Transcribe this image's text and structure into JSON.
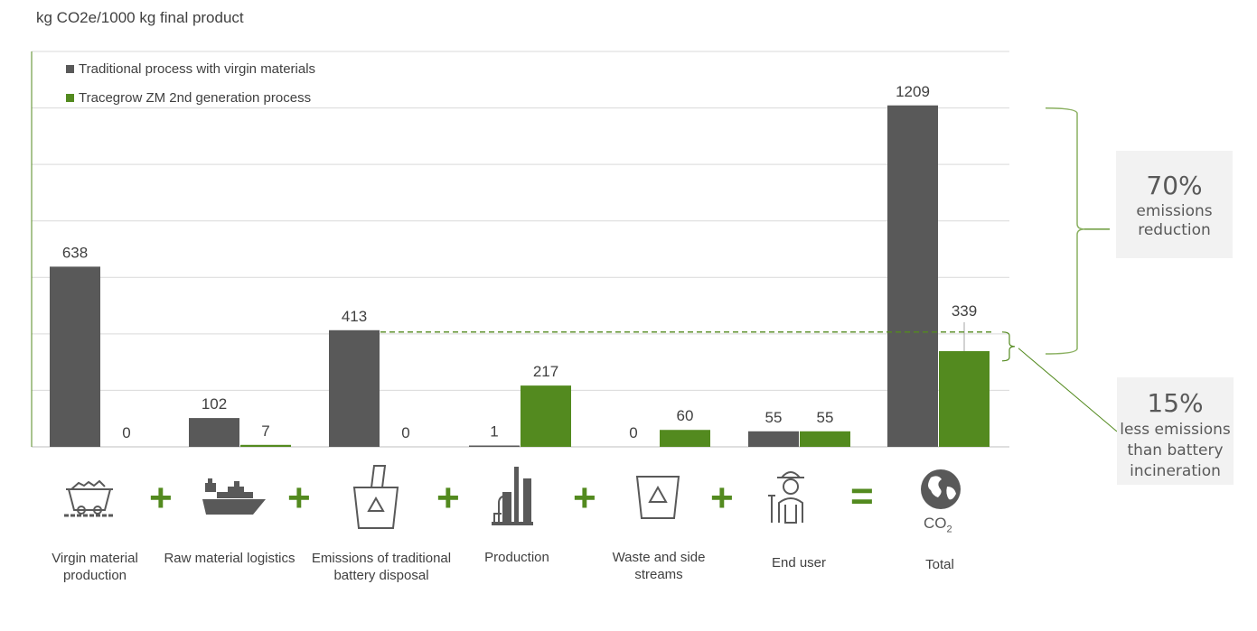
{
  "chart_data": {
    "type": "bar",
    "ylabel": "kg CO2e/1000 kg final product",
    "ylim": [
      0,
      1400
    ],
    "grid": true,
    "legend_position": "top-left",
    "categories": [
      "Virgin material production",
      "Raw material logistics",
      "Emissions of traditional battery disposal",
      "Production",
      "Waste and side streams",
      "End user",
      "Total"
    ],
    "series": [
      {
        "name": "Traditional process with virgin materials",
        "values": [
          638,
          102,
          413,
          1,
          0,
          55,
          1209
        ],
        "color": "#595959"
      },
      {
        "name": "Tracegrow ZM 2nd generation process",
        "values": [
          0,
          7,
          0,
          217,
          60,
          55,
          339
        ],
        "color": "#538a1f"
      }
    ],
    "annotations": {
      "reduction": {
        "value": "70%",
        "text": "emissions reduction"
      },
      "incineration": {
        "value": "15%",
        "text": "less emissions than battery incineration"
      }
    }
  },
  "operators": [
    "+",
    "+",
    "+",
    "+",
    "+",
    "="
  ],
  "icons": [
    "mine-cart-icon",
    "cargo-ship-icon",
    "battery-recycle-bin-icon",
    "factory-icon",
    "recycle-bin-icon",
    "farmer-icon",
    "globe-co2-icon"
  ],
  "co2_label": "CO",
  "co2_sub": "2"
}
